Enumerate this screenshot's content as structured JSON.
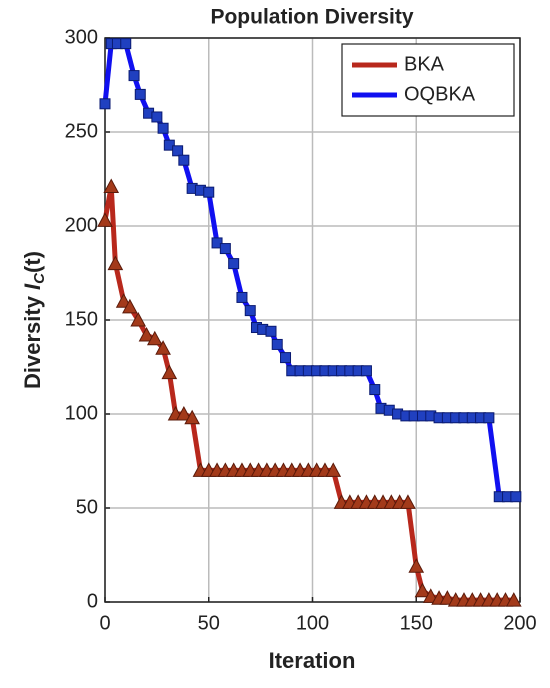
{
  "chart_data": {
    "type": "line",
    "title": "Population Diversity",
    "xlabel": "Iteration",
    "ylabel": [
      "Diversity ",
      "I",
      "C",
      "(t)"
    ],
    "xlim": [
      0,
      200
    ],
    "xticks": [
      0,
      50,
      100,
      150,
      200
    ],
    "ylim": [
      0,
      300
    ],
    "yticks": [
      0,
      50,
      100,
      150,
      200,
      250,
      300
    ],
    "grid": true,
    "legend": "upper right",
    "series": [
      {
        "name": "BKA",
        "color": "#b8281c",
        "marker": "triangle",
        "marker_color": "#a33a1a",
        "x": [
          0,
          3,
          5,
          9,
          12,
          16,
          20,
          24,
          28,
          31,
          34,
          38,
          42,
          46,
          50,
          54,
          58,
          62,
          66,
          70,
          74,
          78,
          82,
          86,
          90,
          94,
          98,
          102,
          106,
          110,
          114,
          118,
          122,
          126,
          130,
          134,
          138,
          142,
          146,
          150,
          153,
          157,
          161,
          165,
          169,
          173,
          177,
          181,
          185,
          189,
          193,
          197
        ],
        "values": [
          203,
          221,
          180,
          160,
          157,
          150,
          142,
          140,
          135,
          122,
          100,
          100,
          98,
          70,
          70,
          70,
          70,
          70,
          70,
          70,
          70,
          70,
          70,
          70,
          70,
          70,
          70,
          70,
          70,
          70,
          53,
          53,
          53,
          53,
          53,
          53,
          53,
          53,
          53,
          19,
          6,
          3,
          2,
          2,
          1,
          1,
          1,
          1,
          1,
          1,
          1,
          1
        ]
      },
      {
        "name": "OQBKA",
        "color": "#1010f0",
        "marker": "square",
        "marker_color": "#2040c0",
        "x": [
          0,
          3,
          6,
          10,
          14,
          17,
          21,
          25,
          28,
          31,
          35,
          38,
          42,
          46,
          50,
          54,
          58,
          62,
          66,
          70,
          73,
          76,
          80,
          83,
          87,
          90,
          94,
          98,
          102,
          106,
          110,
          114,
          118,
          122,
          126,
          130,
          133,
          137,
          141,
          145,
          149,
          153,
          157,
          161,
          165,
          169,
          173,
          177,
          181,
          185,
          190,
          194,
          198
        ],
        "values": [
          265,
          297,
          297,
          297,
          280,
          270,
          260,
          258,
          252,
          243,
          240,
          235,
          220,
          219,
          218,
          191,
          188,
          180,
          162,
          155,
          146,
          145,
          144,
          137,
          130,
          123,
          123,
          123,
          123,
          123,
          123,
          123,
          123,
          123,
          123,
          113,
          103,
          102,
          100,
          99,
          99,
          99,
          99,
          98,
          98,
          98,
          98,
          98,
          98,
          98,
          56,
          56,
          56
        ]
      }
    ]
  }
}
